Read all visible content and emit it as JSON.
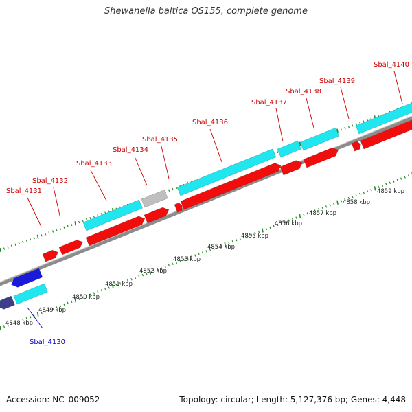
{
  "title": "Shewanella baltica OS155, complete genome",
  "accession": "Accession: NC_009052",
  "topology": "Topology: circular; Length: 5,127,376 bp; Genes: 4,448",
  "colors": {
    "plus_cds": "#f20d0d",
    "minus_cds": "#1a1adb",
    "minus_cds_dark": "#3d3d8c",
    "gene_track": "#1fe6ef",
    "gene_track_pseudo": "#bfbfbf",
    "backbone": "#8c8c8c",
    "tick": "#2a8a2a",
    "label_red": "#cc0000",
    "label_blue": "#0000bb"
  },
  "scale": {
    "unit": "kbp",
    "labels": [
      "4848 kbp",
      "4849 kbp",
      "4850 kbp",
      "4851 kbp",
      "4852 kbp",
      "4853 kbp",
      "4854 kbp",
      "4855 kbp",
      "4856 kbp",
      "4857 kbp",
      "4858 kbp",
      "4859 kbp"
    ]
  },
  "genes": [
    {
      "name": "Sbal_4130",
      "strand": "minus"
    },
    {
      "name": "Sbal_4131",
      "strand": "plus"
    },
    {
      "name": "Sbal_4132",
      "strand": "plus"
    },
    {
      "name": "Sbal_4133",
      "strand": "plus"
    },
    {
      "name": "Sbal_4134",
      "strand": "plus"
    },
    {
      "name": "Sbal_4135",
      "strand": "plus"
    },
    {
      "name": "Sbal_4136",
      "strand": "plus"
    },
    {
      "name": "Sbal_4137",
      "strand": "plus"
    },
    {
      "name": "Sbal_4138",
      "strand": "plus"
    },
    {
      "name": "Sbal_4139",
      "strand": "plus"
    },
    {
      "name": "Sbal_4140",
      "strand": "plus"
    }
  ]
}
